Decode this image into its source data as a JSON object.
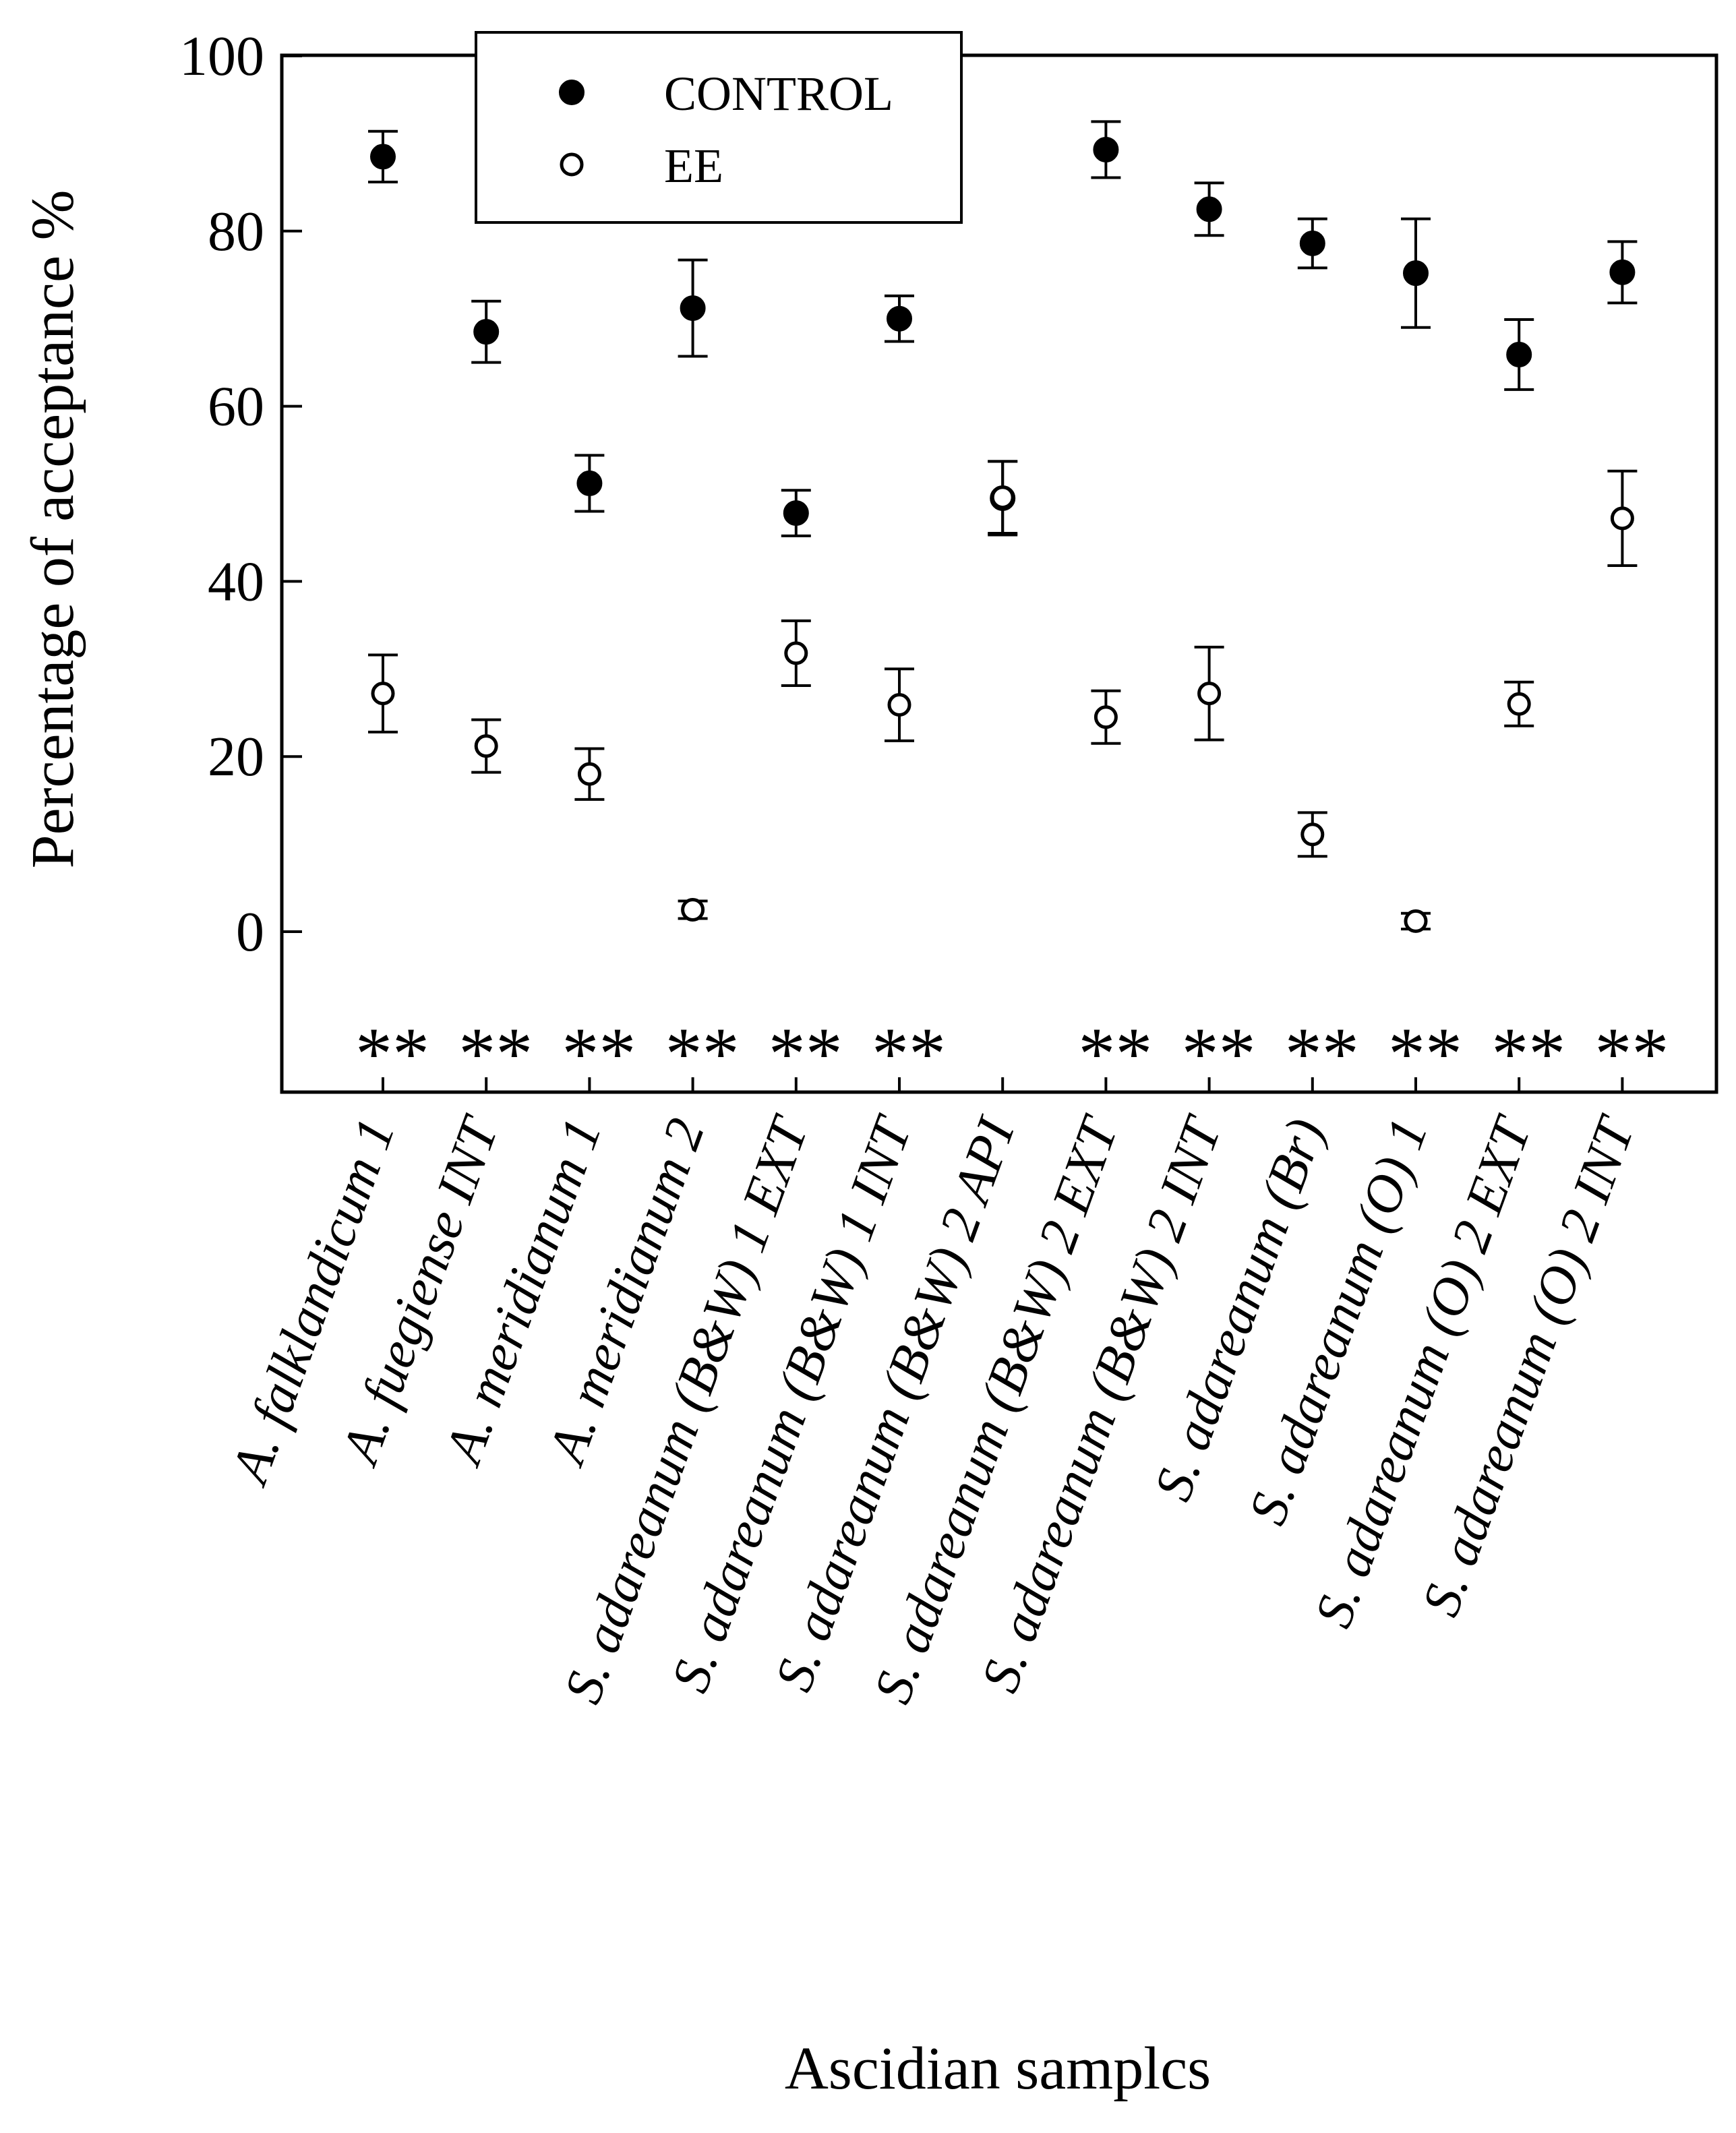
{
  "chart_data": {
    "type": "scatter",
    "title": "",
    "xlabel": "Ascidian samplcs",
    "ylabel": "Percentage of acceptance %",
    "ylim": [
      -18,
      100
    ],
    "yticks": [
      0,
      20,
      40,
      60,
      80,
      100
    ],
    "grid": false,
    "legend_position": "top-left",
    "categories": [
      "A. falklandicum 1",
      "A. fuegiense INT",
      "A. meridianum 1",
      "A. meridianum 2",
      "S. adareanum (B&W) 1 EXT",
      "S. adareanum (B&W) 1 INT",
      "S. adareanum (B&W) 2 API",
      "S. adareanum (B&W) 2 EXT",
      "S. adareanum (B&W) 2 INT",
      "S. adareanum (Br)",
      "S. adareanum (O) 1",
      "S. adareanum (O) 2 EXT",
      "S. adareanum (O) 2 INT"
    ],
    "series": [
      {
        "name": "CONTROL",
        "marker": "filled-circle",
        "color": "#000000",
        "values": [
          88.5,
          68.5,
          51.2,
          71.2,
          47.8,
          70.0,
          49.5,
          89.3,
          82.5,
          78.6,
          75.2,
          65.9,
          75.3
        ],
        "errors": [
          2.9,
          3.5,
          3.2,
          5.5,
          2.6,
          2.6,
          4.2,
          3.2,
          3.0,
          2.8,
          6.2,
          4.0,
          3.5
        ]
      },
      {
        "name": "EE",
        "marker": "open-circle",
        "color": "#000000",
        "values": [
          27.2,
          21.2,
          18.0,
          2.5,
          31.8,
          25.9,
          49.6,
          24.5,
          27.2,
          11.1,
          1.2,
          26.0,
          47.2
        ],
        "errors": [
          4.4,
          3.0,
          2.9,
          1.0,
          3.7,
          4.1,
          4.1,
          3.0,
          5.3,
          2.5,
          0.9,
          2.5,
          5.4
        ]
      }
    ],
    "significance_marks": [
      "**",
      "**",
      "**",
      "**",
      "**",
      "**",
      "",
      "**",
      "**",
      "**",
      "**",
      "**",
      "**"
    ]
  }
}
